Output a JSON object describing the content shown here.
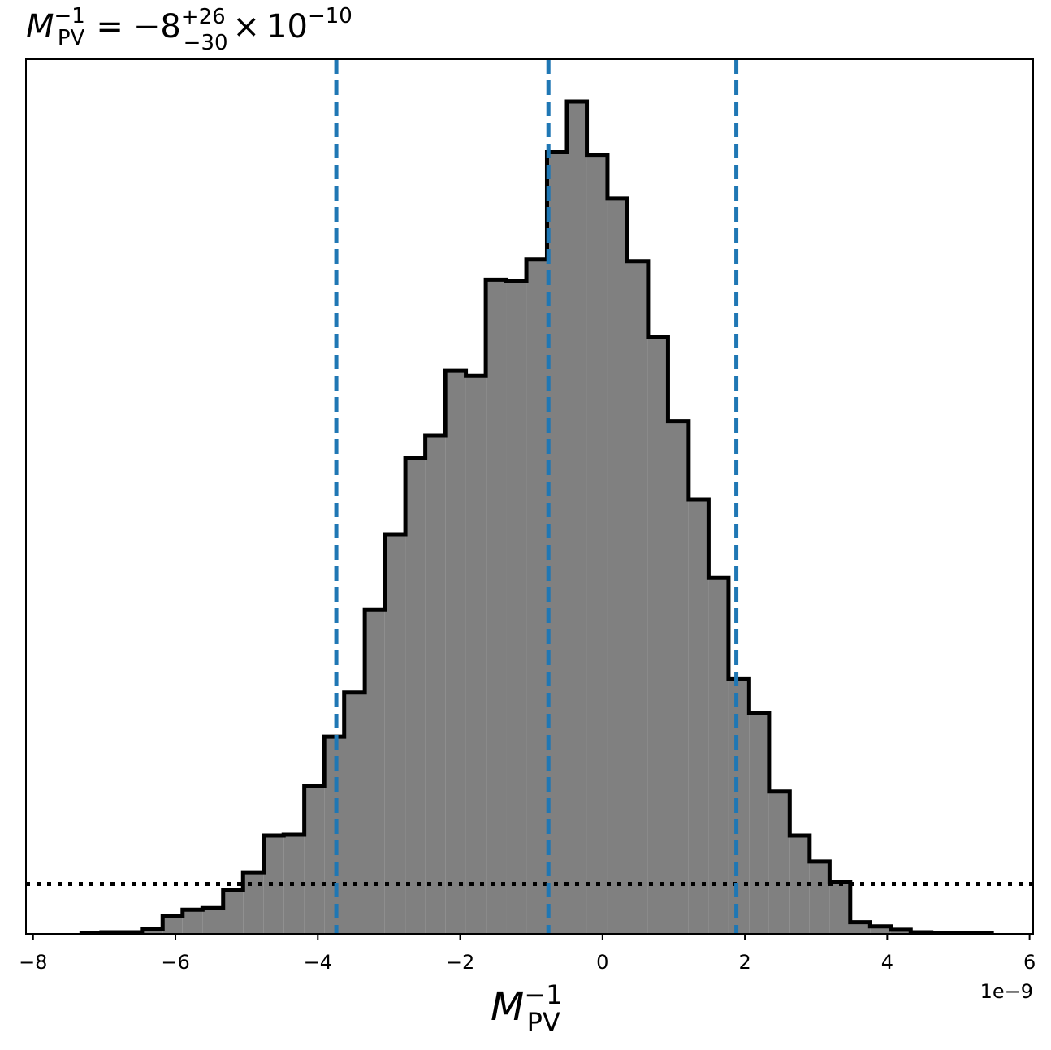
{
  "chart_data": {
    "type": "histogram",
    "title": {
      "base": "M",
      "base_sup": "−1",
      "base_sub": "PV",
      "equals": "=",
      "value": "−8",
      "plus_err": "+26",
      "minus_err": "−30",
      "times": "×",
      "scale_base": "10",
      "scale_exp": "−10"
    },
    "xlabel": {
      "base": "M",
      "sup": "−1",
      "sub": "PV"
    },
    "ylabel": "",
    "x_offset_label": "1e−9",
    "xlim": [
      -8.1,
      6.05
    ],
    "ylim": [
      0,
      1.0
    ],
    "x_ticks": [
      {
        "value": -8,
        "label": "−8"
      },
      {
        "value": -6,
        "label": "−6"
      },
      {
        "value": -4,
        "label": "−4"
      },
      {
        "value": -2,
        "label": "−2"
      },
      {
        "value": 0,
        "label": "0"
      },
      {
        "value": 2,
        "label": "2"
      },
      {
        "value": 4,
        "label": "4"
      },
      {
        "value": 6,
        "label": "6"
      }
    ],
    "bin_edges": [
      -7.32,
      -7.04,
      -6.75,
      -6.47,
      -6.18,
      -5.9,
      -5.62,
      -5.33,
      -5.05,
      -4.76,
      -4.48,
      -4.19,
      -3.91,
      -3.63,
      -3.34,
      -3.06,
      -2.77,
      -2.49,
      -2.21,
      -1.92,
      -1.64,
      -1.35,
      -1.07,
      -0.78,
      -0.5,
      -0.22,
      0.07,
      0.35,
      0.64,
      0.92,
      1.21,
      1.49,
      1.77,
      2.06,
      2.34,
      2.63,
      2.91,
      3.19,
      3.48,
      3.76,
      4.05,
      4.33,
      4.62,
      4.9,
      5.18,
      5.47
    ],
    "bin_heights": [
      0.001,
      0.002,
      0.002,
      0.006,
      0.022,
      0.029,
      0.031,
      0.053,
      0.074,
      0.118,
      0.119,
      0.178,
      0.237,
      0.29,
      0.389,
      0.48,
      0.572,
      0.599,
      0.677,
      0.671,
      0.786,
      0.784,
      0.81,
      0.939,
      1.0,
      0.936,
      0.884,
      0.808,
      0.717,
      0.616,
      0.522,
      0.428,
      0.306,
      0.265,
      0.171,
      0.118,
      0.087,
      0.062,
      0.014,
      0.009,
      0.005,
      0.002,
      0.001,
      0.001,
      0.001
    ],
    "fill_color": "#808080",
    "edge_color": "#000000",
    "vlines": [
      {
        "x": -3.74,
        "style": "dashed",
        "color": "#1f77b4"
      },
      {
        "x": -0.76,
        "style": "dashed",
        "color": "#1f77b4"
      },
      {
        "x": 1.88,
        "style": "dashed",
        "color": "#1f77b4"
      }
    ],
    "hline": {
      "y": 0.06,
      "style": "dotted",
      "color": "#000000"
    },
    "grid": false,
    "legend": false
  }
}
